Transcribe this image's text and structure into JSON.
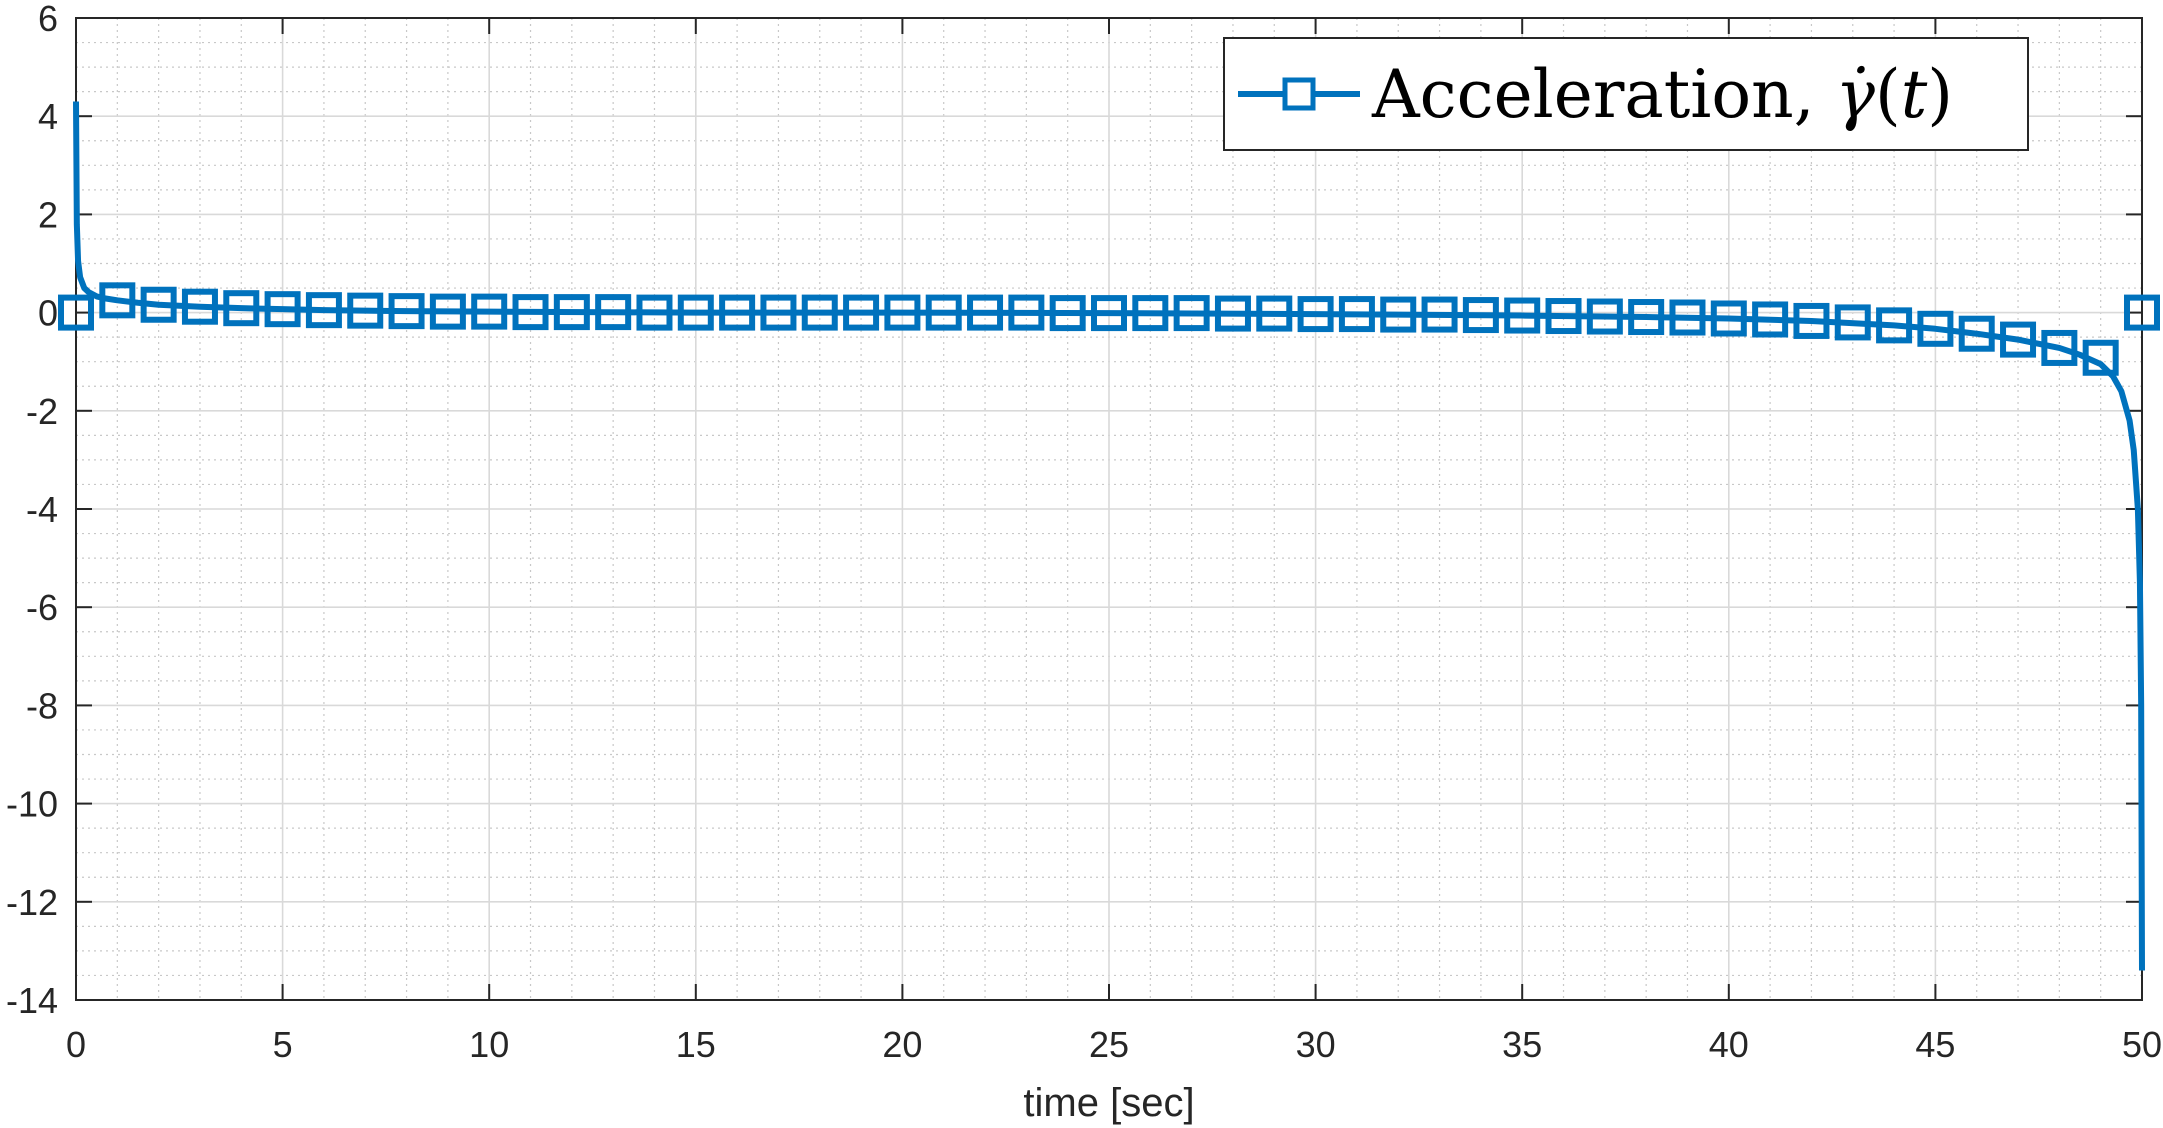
{
  "chart_data": {
    "type": "line",
    "title": "",
    "xlabel": "time [sec]",
    "ylabel": "",
    "xlim": [
      0,
      50
    ],
    "ylim": [
      -14,
      6
    ],
    "xticks": [
      "0",
      "5",
      "10",
      "15",
      "20",
      "25",
      "30",
      "35",
      "40",
      "45",
      "50"
    ],
    "yticks": [
      "6",
      "4",
      "2",
      "0",
      "-2",
      "-4",
      "-6",
      "-8",
      "-10",
      "-12",
      "-14"
    ],
    "grid": true,
    "minor_grid": true,
    "legend_position": "top-right",
    "series": [
      {
        "name": "Acceleration, γ̇(t)",
        "color": "#0072BD",
        "marker": "square",
        "line_points": {
          "x": [
            0,
            0.02,
            0.05,
            0.1,
            0.2,
            0.3,
            0.5,
            0.7,
            1,
            1.5,
            2,
            3,
            4,
            5,
            6,
            8,
            10,
            15,
            20,
            25,
            30,
            35,
            38,
            40,
            42,
            44,
            45,
            46,
            47,
            48,
            48.5,
            49,
            49.3,
            49.5,
            49.7,
            49.8,
            49.9,
            49.95,
            49.98,
            50
          ],
          "y": [
            4.3,
            1.8,
            1.05,
            0.72,
            0.5,
            0.42,
            0.33,
            0.29,
            0.25,
            0.2,
            0.16,
            0.12,
            0.09,
            0.07,
            0.05,
            0.03,
            0.02,
            0.0,
            0.0,
            -0.01,
            -0.03,
            -0.06,
            -0.09,
            -0.12,
            -0.17,
            -0.26,
            -0.33,
            -0.43,
            -0.55,
            -0.72,
            -0.86,
            -1.05,
            -1.3,
            -1.6,
            -2.2,
            -2.8,
            -4.0,
            -5.5,
            -8.0,
            -13.4
          ]
        },
        "marker_points": {
          "x": [
            0,
            1,
            2,
            3,
            4,
            5,
            6,
            7,
            8,
            9,
            10,
            11,
            12,
            13,
            14,
            15,
            16,
            17,
            18,
            19,
            20,
            21,
            22,
            23,
            24,
            25,
            26,
            27,
            28,
            29,
            30,
            31,
            32,
            33,
            34,
            35,
            36,
            37,
            38,
            39,
            40,
            41,
            42,
            43,
            44,
            45,
            46,
            47,
            48,
            49,
            50
          ],
          "y": [
            0,
            0.25,
            0.16,
            0.12,
            0.09,
            0.07,
            0.05,
            0.04,
            0.03,
            0.02,
            0.02,
            0.01,
            0.01,
            0.01,
            0.0,
            0.0,
            0.0,
            0.0,
            0.0,
            0.0,
            0.0,
            0.0,
            0.0,
            0.0,
            -0.01,
            -0.01,
            -0.01,
            -0.01,
            -0.02,
            -0.02,
            -0.03,
            -0.03,
            -0.04,
            -0.04,
            -0.05,
            -0.06,
            -0.07,
            -0.08,
            -0.09,
            -0.1,
            -0.12,
            -0.14,
            -0.17,
            -0.2,
            -0.26,
            -0.33,
            -0.43,
            -0.55,
            -0.72,
            -0.92,
            0
          ]
        }
      }
    ]
  }
}
